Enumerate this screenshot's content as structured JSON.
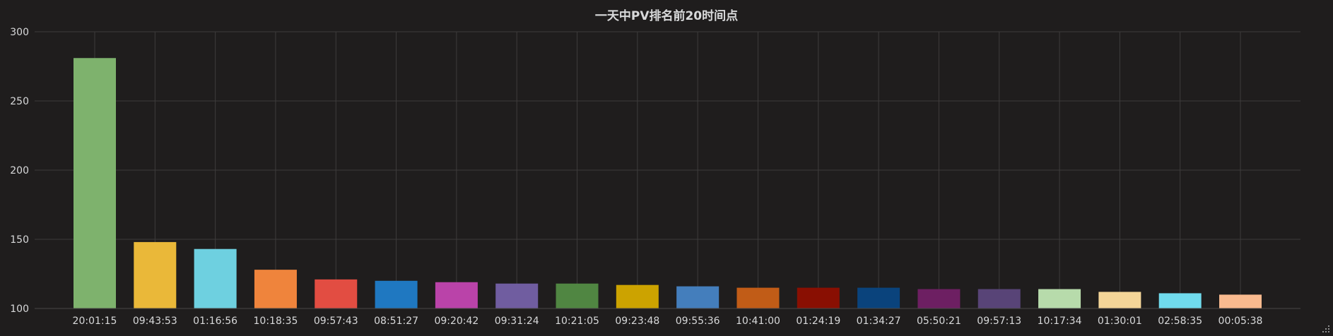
{
  "panel": {
    "title": "一天中PV排名前20时间点"
  },
  "chart_data": {
    "type": "bar",
    "title": "一天中PV排名前20时间点",
    "xlabel": "",
    "ylabel": "",
    "ylim": [
      100,
      300
    ],
    "yticks": [
      100,
      150,
      200,
      250,
      300
    ],
    "grid": true,
    "categories": [
      "20:01:15",
      "09:43:53",
      "01:16:56",
      "10:18:35",
      "09:57:43",
      "08:51:27",
      "09:20:42",
      "09:31:24",
      "10:21:05",
      "09:23:48",
      "09:55:36",
      "10:41:00",
      "01:24:19",
      "01:34:27",
      "05:50:21",
      "09:57:13",
      "10:17:34",
      "01:30:01",
      "02:58:35",
      "00:05:38"
    ],
    "values": [
      281,
      148,
      143,
      128,
      121,
      120,
      119,
      118,
      118,
      117,
      116,
      115,
      115,
      115,
      114,
      114,
      114,
      112,
      111,
      110
    ],
    "colors": [
      "#7eb26d",
      "#eab839",
      "#6ed0e0",
      "#ef843c",
      "#e24d42",
      "#1f78c1",
      "#ba43a9",
      "#705da0",
      "#508642",
      "#cca300",
      "#447ebc",
      "#c15c17",
      "#890f02",
      "#0a437c",
      "#6d1f62",
      "#584477",
      "#b7dbab",
      "#f4d598",
      "#70dbed",
      "#f9ba8f"
    ]
  }
}
